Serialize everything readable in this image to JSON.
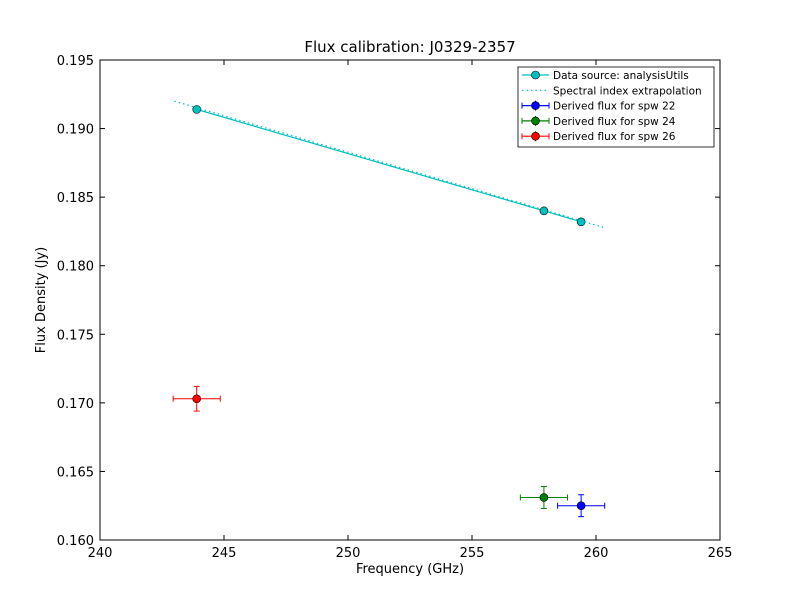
{
  "chart_data": {
    "type": "scatter",
    "title": "Flux calibration: J0329-2357",
    "xlabel": "Frequency (GHz)",
    "ylabel": "Flux Density (Jy)",
    "xlim": [
      240,
      265
    ],
    "ylim": [
      0.16,
      0.195
    ],
    "xticks": [
      240,
      245,
      250,
      255,
      260,
      265
    ],
    "xtick_labels": [
      "240",
      "245",
      "250",
      "255",
      "260",
      "265"
    ],
    "yticks": [
      0.16,
      0.165,
      0.17,
      0.175,
      0.18,
      0.185,
      0.19,
      0.195
    ],
    "ytick_labels": [
      "0.160",
      "0.165",
      "0.170",
      "0.175",
      "0.180",
      "0.185",
      "0.190",
      "0.195"
    ],
    "grid": false,
    "legend_position": "top-right",
    "series": [
      {
        "name": "Data source: analysisUtils",
        "style": "line-marker",
        "color": "#00bfbf",
        "x": [
          243.9,
          257.9,
          259.4
        ],
        "y": [
          0.1914,
          0.184,
          0.1832
        ]
      },
      {
        "name": "Spectral index extrapolation",
        "style": "dotted",
        "color": "#00bfbf",
        "x": [
          243.0,
          260.3
        ],
        "y": [
          0.192,
          0.1828
        ]
      },
      {
        "name": "Derived flux for spw 22",
        "style": "errorbar",
        "color": "#0000ff",
        "x": [
          259.4
        ],
        "y": [
          0.1625
        ],
        "xerr": [
          0.95
        ],
        "yerr": [
          0.0008
        ]
      },
      {
        "name": "Derived flux for spw 24",
        "style": "errorbar",
        "color": "#008000",
        "x": [
          257.9
        ],
        "y": [
          0.1631
        ],
        "xerr": [
          0.95
        ],
        "yerr": [
          0.0008
        ]
      },
      {
        "name": "Derived flux for spw 26",
        "style": "errorbar",
        "color": "#ff0000",
        "x": [
          243.9
        ],
        "y": [
          0.1703
        ],
        "xerr": [
          0.95
        ],
        "yerr": [
          0.0009
        ]
      }
    ]
  }
}
